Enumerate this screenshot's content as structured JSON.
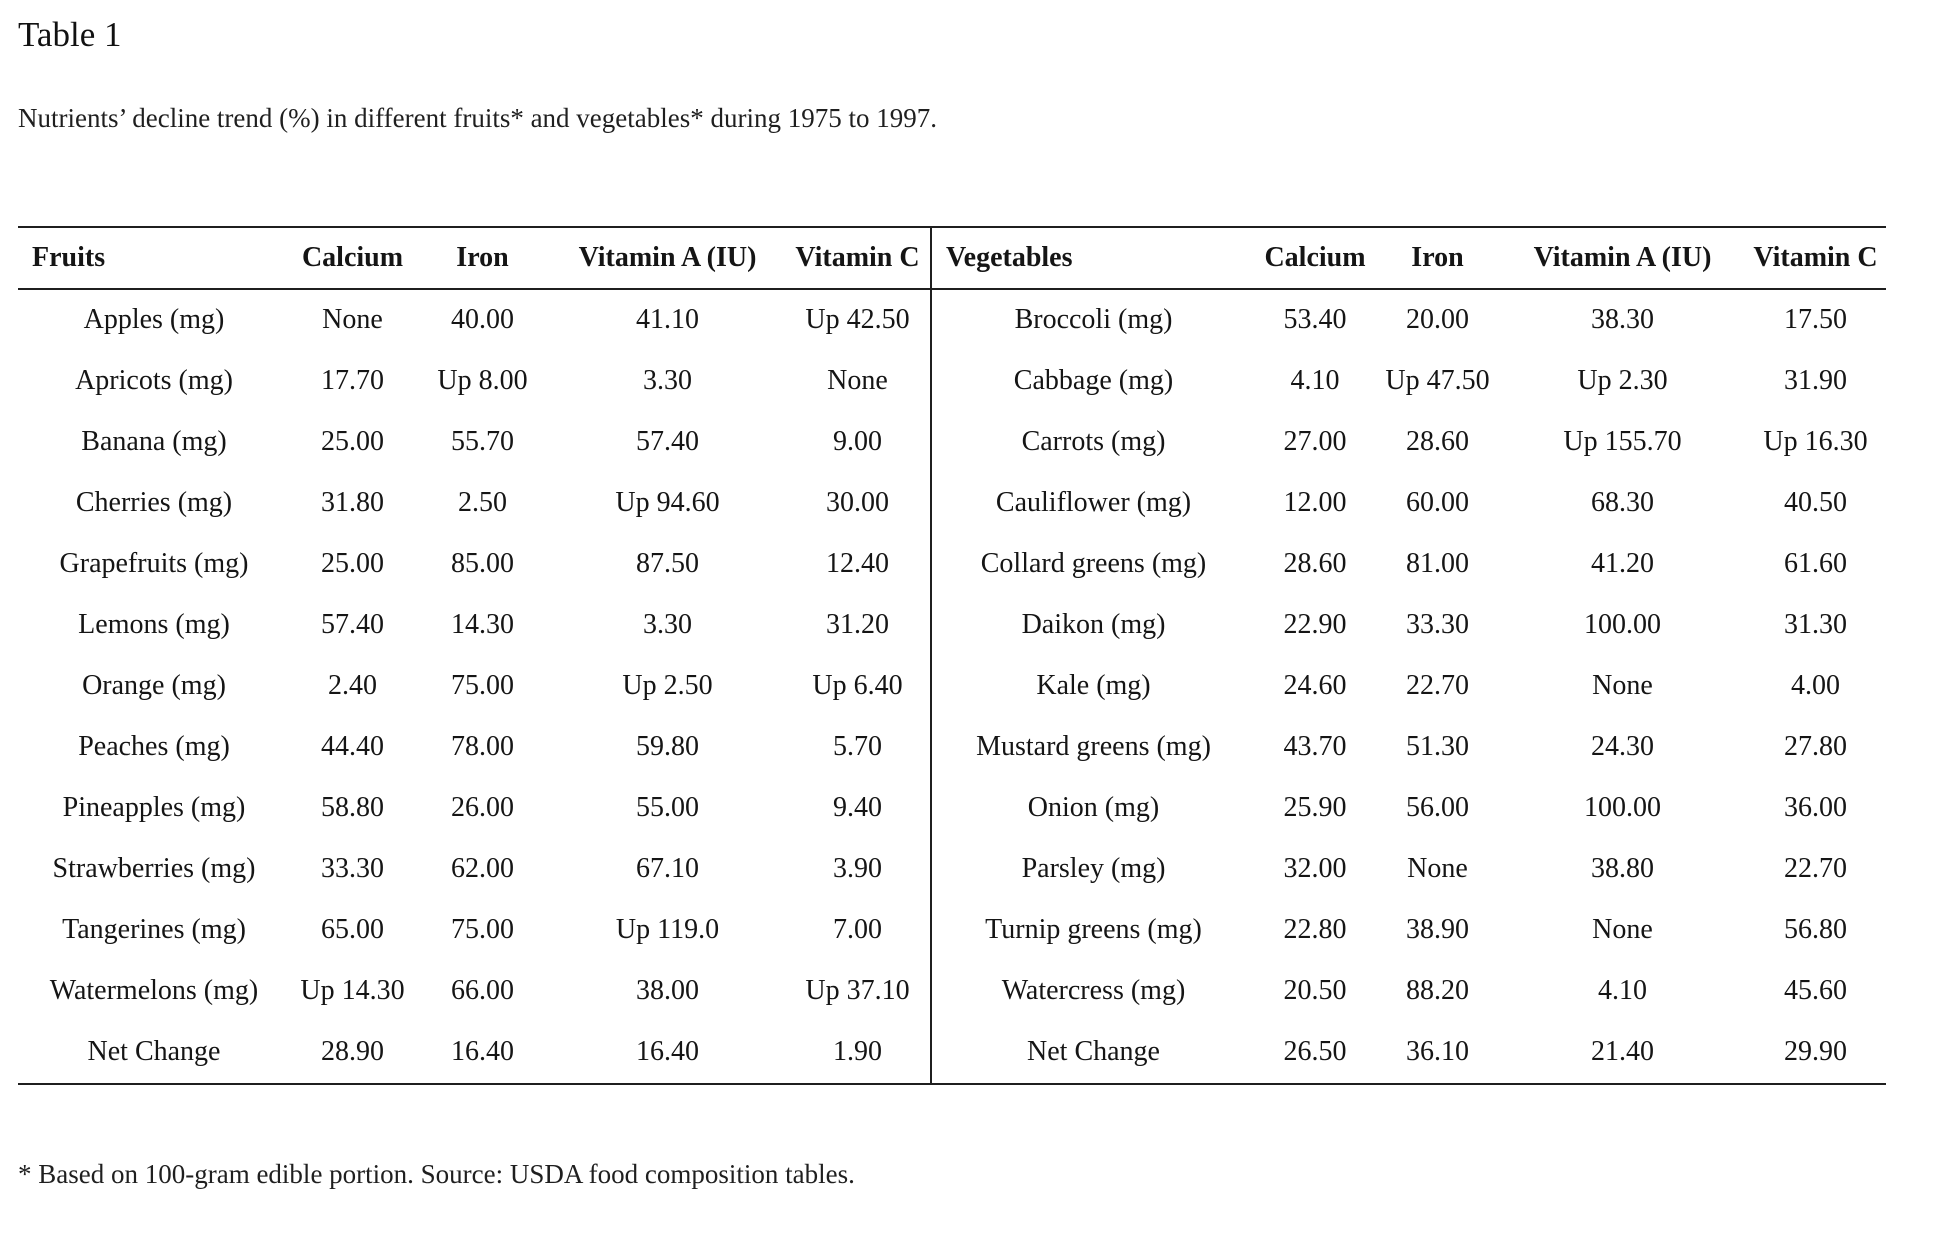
{
  "title": "Table 1",
  "caption": "Nutrients’ decline trend (%) in different fruits* and vegetables* during 1975 to 1997.",
  "footnote": "* Based on 100-gram edible portion. Source: USDA food composition tables.",
  "table": {
    "fruits": {
      "headers": [
        "Fruits",
        "Calcium",
        "Iron",
        "Vitamin A (IU)",
        "Vitamin C"
      ],
      "rows": [
        [
          "Apples (mg)",
          "None",
          "40.00",
          "41.10",
          "Up 42.50"
        ],
        [
          "Apricots (mg)",
          "17.70",
          "Up 8.00",
          "3.30",
          "None"
        ],
        [
          "Banana (mg)",
          "25.00",
          "55.70",
          "57.40",
          "9.00"
        ],
        [
          "Cherries (mg)",
          "31.80",
          "2.50",
          "Up 94.60",
          "30.00"
        ],
        [
          "Grapefruits (mg)",
          "25.00",
          "85.00",
          "87.50",
          "12.40"
        ],
        [
          "Lemons (mg)",
          "57.40",
          "14.30",
          "3.30",
          "31.20"
        ],
        [
          "Orange (mg)",
          "2.40",
          "75.00",
          "Up 2.50",
          "Up 6.40"
        ],
        [
          "Peaches (mg)",
          "44.40",
          "78.00",
          "59.80",
          "5.70"
        ],
        [
          "Pineapples (mg)",
          "58.80",
          "26.00",
          "55.00",
          "9.40"
        ],
        [
          "Strawberries (mg)",
          "33.30",
          "62.00",
          "67.10",
          "3.90"
        ],
        [
          "Tangerines (mg)",
          "65.00",
          "75.00",
          "Up 119.0",
          "7.00"
        ],
        [
          "Watermelons (mg)",
          "Up 14.30",
          "66.00",
          "38.00",
          "Up 37.10"
        ],
        [
          "Net Change",
          "28.90",
          "16.40",
          "16.40",
          "1.90"
        ]
      ]
    },
    "vegetables": {
      "headers": [
        "Vegetables",
        "Calcium",
        "Iron",
        "Vitamin A (IU)",
        "Vitamin C"
      ],
      "rows": [
        [
          "Broccoli (mg)",
          "53.40",
          "20.00",
          "38.30",
          "17.50"
        ],
        [
          "Cabbage (mg)",
          "4.10",
          "Up 47.50",
          "Up 2.30",
          "31.90"
        ],
        [
          "Carrots (mg)",
          "27.00",
          "28.60",
          "Up 155.70",
          "Up 16.30"
        ],
        [
          "Cauliflower (mg)",
          "12.00",
          "60.00",
          "68.30",
          "40.50"
        ],
        [
          "Collard greens (mg)",
          "28.60",
          "81.00",
          "41.20",
          "61.60"
        ],
        [
          "Daikon (mg)",
          "22.90",
          "33.30",
          "100.00",
          "31.30"
        ],
        [
          "Kale (mg)",
          "24.60",
          "22.70",
          "None",
          "4.00"
        ],
        [
          "Mustard greens (mg)",
          "43.70",
          "51.30",
          "24.30",
          "27.80"
        ],
        [
          "Onion (mg)",
          "25.90",
          "56.00",
          "100.00",
          "36.00"
        ],
        [
          "Parsley (mg)",
          "32.00",
          "None",
          "38.80",
          "22.70"
        ],
        [
          "Turnip greens (mg)",
          "22.80",
          "38.90",
          "None",
          "56.80"
        ],
        [
          "Watercress (mg)",
          "20.50",
          "88.20",
          "4.10",
          "45.60"
        ],
        [
          "Net Change",
          "26.50",
          "36.10",
          "21.40",
          "29.90"
        ]
      ]
    }
  }
}
